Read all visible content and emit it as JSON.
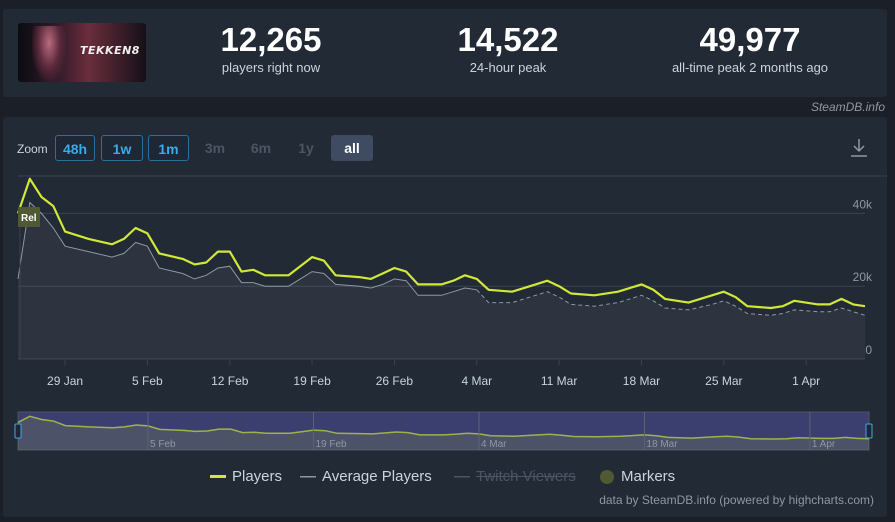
{
  "stats": {
    "game_logo_text": "TEKKEN8",
    "players_now": {
      "value": "12,265",
      "label": "players right now"
    },
    "peak_24h": {
      "value": "14,522",
      "label": "24-hour peak"
    },
    "all_time_peak": {
      "value": "49,977",
      "label": "all-time peak 2 months ago"
    }
  },
  "credit_top": "SteamDB.info",
  "zoom": {
    "label": "Zoom",
    "buttons": [
      {
        "label": "48h",
        "state": "active-range"
      },
      {
        "label": "1w",
        "state": "active-range"
      },
      {
        "label": "1m",
        "state": "active-range"
      },
      {
        "label": "3m",
        "state": "disabled"
      },
      {
        "label": "6m",
        "state": "disabled"
      },
      {
        "label": "1y",
        "state": "disabled"
      },
      {
        "label": "all",
        "state": "selected"
      }
    ]
  },
  "legend": {
    "players": "Players",
    "average_players": "Average Players",
    "twitch_viewers": "Twitch Viewers",
    "markers": "Markers"
  },
  "credit_bottom": "data by SteamDB.info (powered by highcharts.com)",
  "colors": {
    "players": "#d2e839",
    "average": "#8f98a0",
    "markers": "#4f5a33",
    "navigator_fill": "#3a3f70",
    "accent": "#3da9e8"
  },
  "chart_data": {
    "type": "line",
    "x_start": "2024-01-25",
    "x_end": "2024-04-06",
    "ylim": [
      0,
      50000
    ],
    "y_ticks": [
      0,
      20000,
      40000
    ],
    "y_tick_labels": [
      "0",
      "20k",
      "40k"
    ],
    "x_ticks": [
      "2024-01-29",
      "2024-02-05",
      "2024-02-12",
      "2024-02-19",
      "2024-02-26",
      "2024-03-04",
      "2024-03-11",
      "2024-03-18",
      "2024-03-25",
      "2024-04-01"
    ],
    "x_tick_labels": [
      "29 Jan",
      "5 Feb",
      "12 Feb",
      "19 Feb",
      "26 Feb",
      "4 Mar",
      "11 Mar",
      "18 Mar",
      "25 Mar",
      "1 Apr"
    ],
    "navigator_labels": [
      "5 Feb",
      "19 Feb",
      "4 Mar",
      "18 Mar",
      "1 Apr"
    ],
    "markers": [
      {
        "date": "2024-01-25",
        "label": "Rel"
      }
    ],
    "series": [
      {
        "name": "Players",
        "points": [
          [
            "2024-01-25",
            40000
          ],
          [
            "2024-01-26",
            49500
          ],
          [
            "2024-01-27",
            44500
          ],
          [
            "2024-01-28",
            42000
          ],
          [
            "2024-01-29",
            35000
          ],
          [
            "2024-01-31",
            33000
          ],
          [
            "2024-02-02",
            31500
          ],
          [
            "2024-02-03",
            33000
          ],
          [
            "2024-02-04",
            36000
          ],
          [
            "2024-02-05",
            34500
          ],
          [
            "2024-02-06",
            29000
          ],
          [
            "2024-02-08",
            27500
          ],
          [
            "2024-02-09",
            26000
          ],
          [
            "2024-02-10",
            26500
          ],
          [
            "2024-02-11",
            29500
          ],
          [
            "2024-02-12",
            29500
          ],
          [
            "2024-02-13",
            24000
          ],
          [
            "2024-02-14",
            24500
          ],
          [
            "2024-02-15",
            23000
          ],
          [
            "2024-02-17",
            23000
          ],
          [
            "2024-02-18",
            25500
          ],
          [
            "2024-02-19",
            28000
          ],
          [
            "2024-02-20",
            27000
          ],
          [
            "2024-02-21",
            23000
          ],
          [
            "2024-02-23",
            22500
          ],
          [
            "2024-02-24",
            22000
          ],
          [
            "2024-02-25",
            23500
          ],
          [
            "2024-02-26",
            25000
          ],
          [
            "2024-02-27",
            24000
          ],
          [
            "2024-02-28",
            20500
          ],
          [
            "2024-03-01",
            20500
          ],
          [
            "2024-03-02",
            21500
          ],
          [
            "2024-03-03",
            23000
          ],
          [
            "2024-03-04",
            22000
          ],
          [
            "2024-03-05",
            19000
          ],
          [
            "2024-03-07",
            18500
          ],
          [
            "2024-03-09",
            20500
          ],
          [
            "2024-03-10",
            21500
          ],
          [
            "2024-03-11",
            20000
          ],
          [
            "2024-03-12",
            18000
          ],
          [
            "2024-03-14",
            17500
          ],
          [
            "2024-03-16",
            18500
          ],
          [
            "2024-03-18",
            20500
          ],
          [
            "2024-03-19",
            19000
          ],
          [
            "2024-03-20",
            16500
          ],
          [
            "2024-03-22",
            15500
          ],
          [
            "2024-03-24",
            17500
          ],
          [
            "2024-03-25",
            18500
          ],
          [
            "2024-03-26",
            17000
          ],
          [
            "2024-03-27",
            14500
          ],
          [
            "2024-03-29",
            14000
          ],
          [
            "2024-03-30",
            14500
          ],
          [
            "2024-03-31",
            16000
          ],
          [
            "2024-04-02",
            15000
          ],
          [
            "2024-04-03",
            15000
          ],
          [
            "2024-04-04",
            16500
          ],
          [
            "2024-04-05",
            15000
          ],
          [
            "2024-04-06",
            14500
          ]
        ]
      },
      {
        "name": "Average Players",
        "points": [
          [
            "2024-01-25",
            22000
          ],
          [
            "2024-01-26",
            43000
          ],
          [
            "2024-01-27",
            40000
          ],
          [
            "2024-01-28",
            36000
          ],
          [
            "2024-01-29",
            31000
          ],
          [
            "2024-01-31",
            29500
          ],
          [
            "2024-02-02",
            28000
          ],
          [
            "2024-02-03",
            29000
          ],
          [
            "2024-02-04",
            32000
          ],
          [
            "2024-02-05",
            31000
          ],
          [
            "2024-02-06",
            25000
          ],
          [
            "2024-02-08",
            23500
          ],
          [
            "2024-02-09",
            22000
          ],
          [
            "2024-02-10",
            23000
          ],
          [
            "2024-02-11",
            25000
          ],
          [
            "2024-02-12",
            25500
          ],
          [
            "2024-02-13",
            21000
          ],
          [
            "2024-02-14",
            21000
          ],
          [
            "2024-02-15",
            20000
          ],
          [
            "2024-02-17",
            20000
          ],
          [
            "2024-02-18",
            22000
          ],
          [
            "2024-02-19",
            24000
          ],
          [
            "2024-02-20",
            23500
          ],
          [
            "2024-02-21",
            20500
          ],
          [
            "2024-02-23",
            20000
          ],
          [
            "2024-02-24",
            19500
          ],
          [
            "2024-02-25",
            20500
          ],
          [
            "2024-02-26",
            22000
          ],
          [
            "2024-02-27",
            21500
          ],
          [
            "2024-02-28",
            17500
          ],
          [
            "2024-03-01",
            17500
          ],
          [
            "2024-03-02",
            18500
          ],
          [
            "2024-03-03",
            19500
          ],
          [
            "2024-03-04",
            19000
          ],
          [
            "2024-03-05",
            15500
          ],
          [
            "2024-03-07",
            15500
          ],
          [
            "2024-03-09",
            17500
          ],
          [
            "2024-03-10",
            18500
          ],
          [
            "2024-03-11",
            17000
          ],
          [
            "2024-03-12",
            15000
          ],
          [
            "2024-03-14",
            14500
          ],
          [
            "2024-03-16",
            15500
          ],
          [
            "2024-03-18",
            17500
          ],
          [
            "2024-03-19",
            16000
          ],
          [
            "2024-03-20",
            14000
          ],
          [
            "2024-03-22",
            13500
          ],
          [
            "2024-03-24",
            15000
          ],
          [
            "2024-03-25",
            16000
          ],
          [
            "2024-03-26",
            14500
          ],
          [
            "2024-03-27",
            12500
          ],
          [
            "2024-03-29",
            12000
          ],
          [
            "2024-03-30",
            12500
          ],
          [
            "2024-03-31",
            13500
          ],
          [
            "2024-04-02",
            13000
          ],
          [
            "2024-04-03",
            13000
          ],
          [
            "2024-04-04",
            14000
          ],
          [
            "2024-04-05",
            13000
          ],
          [
            "2024-04-06",
            12000
          ]
        ]
      }
    ]
  }
}
